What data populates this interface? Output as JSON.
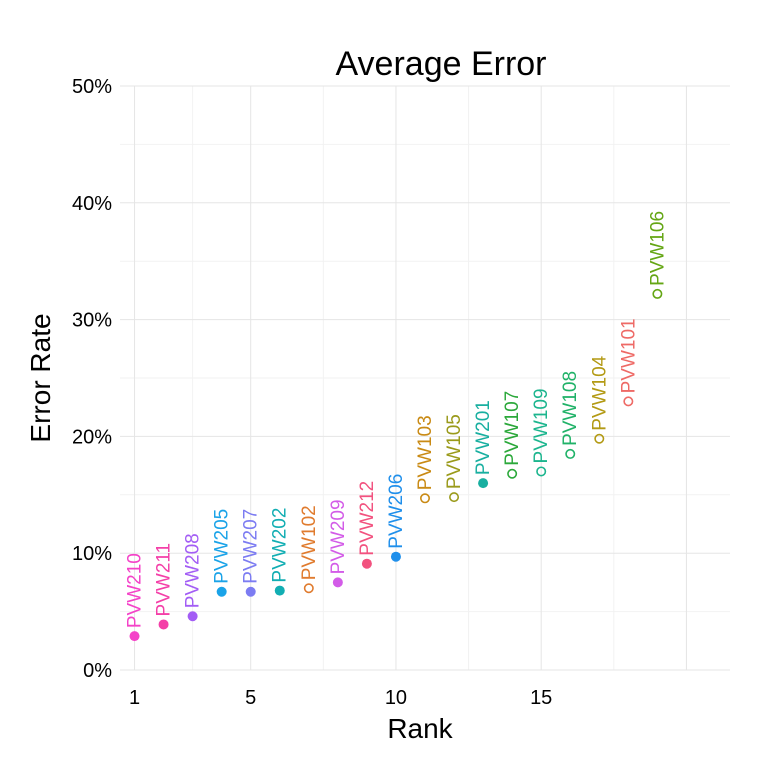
{
  "chart_data": {
    "type": "scatter",
    "title": "Average Error",
    "xlabel": "Rank",
    "ylabel": "Error Rate",
    "xlim": [
      0.5,
      21.5
    ],
    "ylim": [
      0,
      0.5
    ],
    "x_ticks": [
      1,
      5,
      10,
      15
    ],
    "y_ticks": [
      0,
      0.1,
      0.2,
      0.3,
      0.4,
      0.5
    ],
    "y_tick_labels": [
      "0%",
      "10%",
      "20%",
      "30%",
      "40%",
      "50%"
    ],
    "grid": true,
    "legend": "none",
    "points": [
      {
        "label": "PVW210",
        "rank": 1,
        "value": 0.029,
        "filled": true,
        "color": "#F442C8"
      },
      {
        "label": "PVW211",
        "rank": 2,
        "value": 0.039,
        "filled": true,
        "color": "#F43FA8"
      },
      {
        "label": "PVW208",
        "rank": 3,
        "value": 0.046,
        "filled": true,
        "color": "#A35DF5"
      },
      {
        "label": "PVW205",
        "rank": 4,
        "value": 0.067,
        "filled": true,
        "color": "#1AA3E8"
      },
      {
        "label": "PVW207",
        "rank": 5,
        "value": 0.067,
        "filled": true,
        "color": "#7C7CF2"
      },
      {
        "label": "PVW202",
        "rank": 6,
        "value": 0.068,
        "filled": true,
        "color": "#12AEB3"
      },
      {
        "label": "PVW102",
        "rank": 7,
        "value": 0.07,
        "filled": false,
        "color": "#E07B2E"
      },
      {
        "label": "PVW209",
        "rank": 8,
        "value": 0.075,
        "filled": true,
        "color": "#D35CE8"
      },
      {
        "label": "PVW212",
        "rank": 9,
        "value": 0.091,
        "filled": true,
        "color": "#F2527F"
      },
      {
        "label": "PVW206",
        "rank": 10,
        "value": 0.097,
        "filled": true,
        "color": "#1F8FEB"
      },
      {
        "label": "PVW103",
        "rank": 11,
        "value": 0.147,
        "filled": false,
        "color": "#C98A14"
      },
      {
        "label": "PVW105",
        "rank": 12,
        "value": 0.148,
        "filled": false,
        "color": "#9A9A1A"
      },
      {
        "label": "PVW201",
        "rank": 13,
        "value": 0.16,
        "filled": true,
        "color": "#18AFA0"
      },
      {
        "label": "PVW107",
        "rank": 14,
        "value": 0.168,
        "filled": false,
        "color": "#2BA83A"
      },
      {
        "label": "PVW109",
        "rank": 15,
        "value": 0.17,
        "filled": false,
        "color": "#1CB58E"
      },
      {
        "label": "PVW108",
        "rank": 16,
        "value": 0.185,
        "filled": false,
        "color": "#20B268"
      },
      {
        "label": "PVW104",
        "rank": 17,
        "value": 0.198,
        "filled": false,
        "color": "#B39A14"
      },
      {
        "label": "PVW101",
        "rank": 18,
        "value": 0.23,
        "filled": false,
        "color": "#EE6A66"
      },
      {
        "label": "PVW106",
        "rank": 19,
        "value": 0.322,
        "filled": false,
        "color": "#64A614"
      }
    ]
  }
}
